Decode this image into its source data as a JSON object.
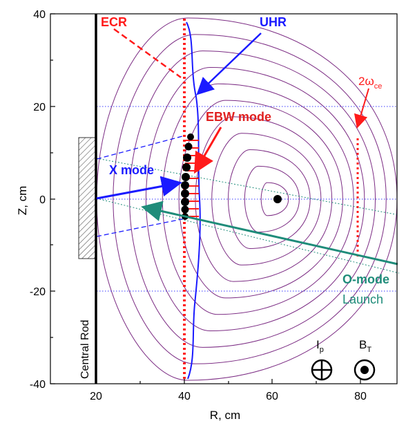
{
  "chart_data": {
    "type": "diagram",
    "xlabel": "R, cm",
    "ylabel": "Z, cm",
    "xlim": [
      10,
      90
    ],
    "ylim": [
      -40,
      40
    ],
    "x_ticks": [
      "20",
      "40",
      "60",
      "80"
    ],
    "y_ticks": [
      "40",
      "20",
      "0",
      "-20",
      "-40"
    ],
    "labels": {
      "ecr": "ECR",
      "uhr": "UHR",
      "two_omega_main": "2ω",
      "two_omega_sub": "ce",
      "ebw_mode": "EBW mode",
      "x_mode": "X mode",
      "o_mode": "O-mode",
      "launch": "Launch",
      "central_rod": "Central Rod",
      "ip_main": "I",
      "ip_sub": "p",
      "bt_main": "B",
      "bt_sub": "T"
    },
    "magnetic_axis": {
      "R": 62,
      "Z": 0
    },
    "ecr_R": 40,
    "two_omega_ce_R": 81,
    "central_rod_R": 20,
    "colors": {
      "flux_surface": "#7b2b83",
      "ecr": "#ff1a1a",
      "uhr": "#1a1aff",
      "grid": "#3a3aff",
      "o_mode": "#1f8c7a",
      "ebw_text": "#e02020"
    }
  }
}
